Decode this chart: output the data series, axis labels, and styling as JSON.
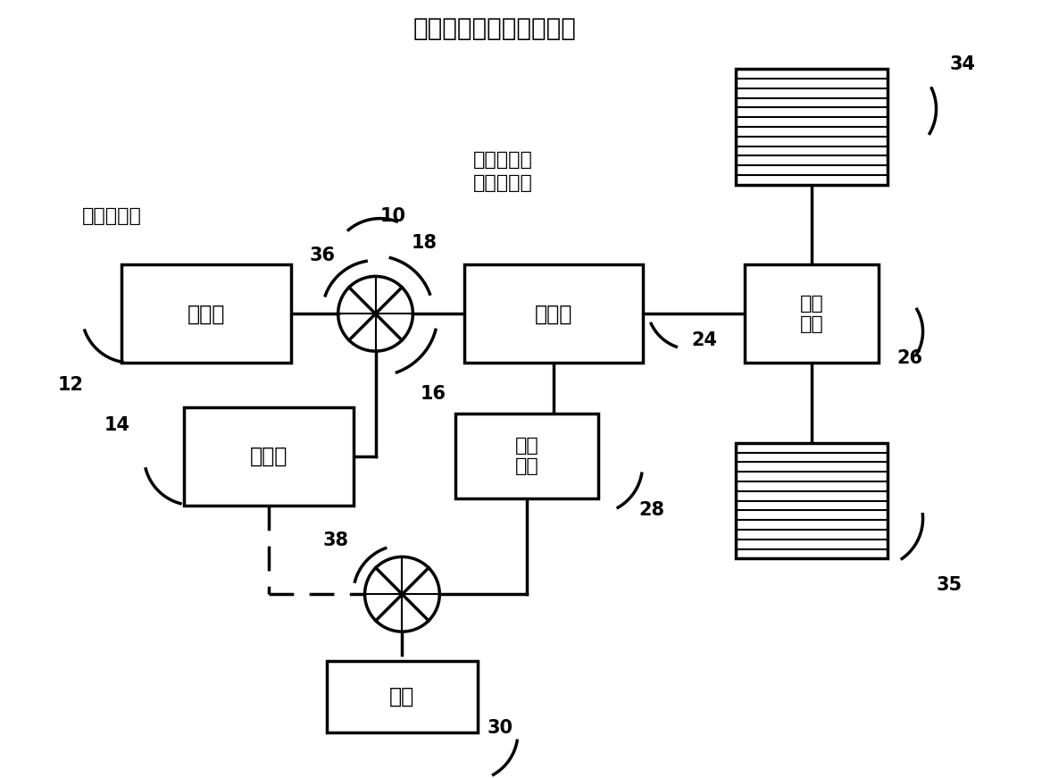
{
  "title": "发动机与变速器完全关闭",
  "label_engine": "发动机",
  "label_starter": "起动机",
  "label_transmission": "变速器",
  "label_main_reducer": "主减\n速器",
  "label_epump": "电辅\n助泵",
  "label_battery": "电池",
  "label_engine_stop": "发动机停机",
  "label_trans_neutral": "变速器空档\n离合器松开",
  "num_engine": "12",
  "num_starter": "14",
  "num_clutch1_top": "36",
  "num_18": "18",
  "num_16": "16",
  "num_transmission": "24",
  "num_main_reducer": "26",
  "num_epump": "28",
  "num_battery": "30",
  "num_wheel_top": "34",
  "num_wheel_bot": "35",
  "num_clutch2": "38",
  "num_10": "10",
  "bg_color": "#ffffff"
}
